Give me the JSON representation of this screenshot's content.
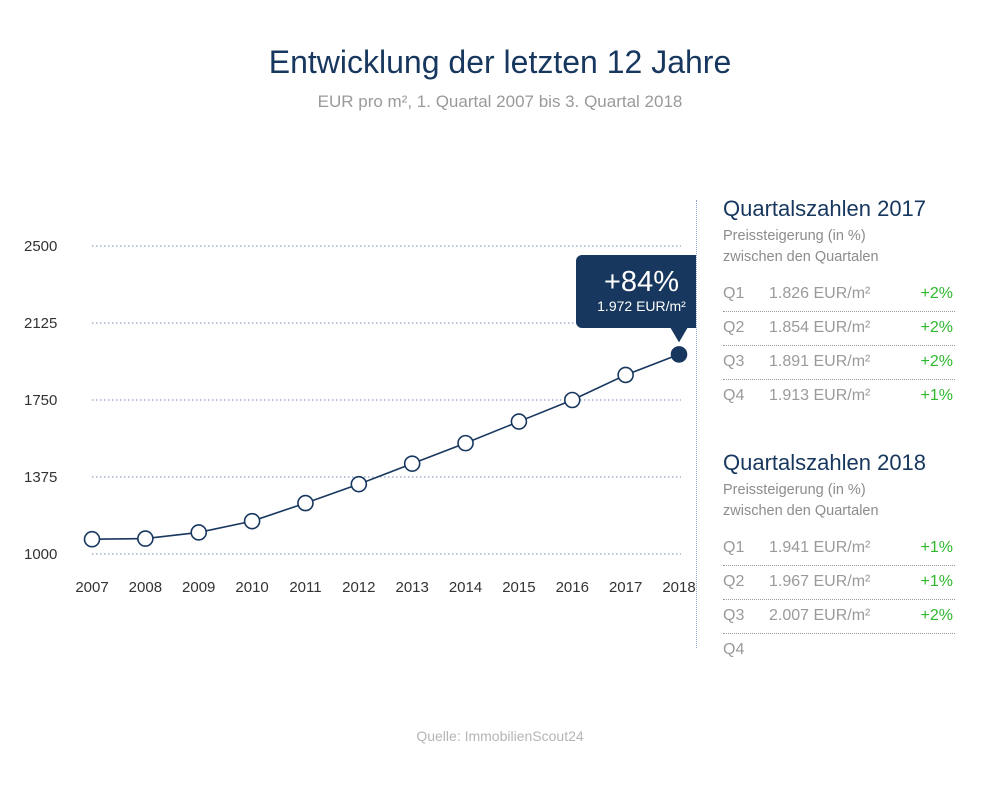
{
  "header": {
    "title": "Entwicklung der letzten 12 Jahre",
    "subtitle": "EUR pro m², 1. Quartal 2007 bis 3. Quartal 2018"
  },
  "colors": {
    "primary": "#17375e",
    "increase": "#2eb82e",
    "muted": "#9a9a9a",
    "gridline": "#8fa3c8"
  },
  "chart_data": {
    "type": "line",
    "title": "Entwicklung der letzten 12 Jahre",
    "subtitle": "EUR pro m², 1. Quartal 2007 bis 3. Quartal 2018",
    "x": [
      "2007",
      "2008",
      "2009",
      "2010",
      "2011",
      "2012",
      "2013",
      "2014",
      "2015",
      "2016",
      "2017",
      "2018"
    ],
    "series": [
      {
        "values": [
          1072,
          1075,
          1105,
          1160,
          1248,
          1340,
          1440,
          1540,
          1645,
          1750,
          1872,
          1972
        ]
      }
    ],
    "ylim": [
      1000,
      2500
    ],
    "y_ticks": [
      "2500",
      "2125",
      "1750",
      "1375",
      "1000"
    ],
    "grid": true,
    "highlight": {
      "category": "2018",
      "value": 1972,
      "label_main": "+84%",
      "label_sub": "1.972 EUR/m²"
    }
  },
  "panels": [
    {
      "title": "Quartalszahlen 2017",
      "desc_line1": "Preissteigerung (in %)",
      "desc_line2": "zwischen den Quartalen",
      "rows": [
        {
          "q": "Q1",
          "value": "1.826 EUR/m²",
          "change": "+2%"
        },
        {
          "q": "Q2",
          "value": "1.854 EUR/m²",
          "change": "+2%"
        },
        {
          "q": "Q3",
          "value": "1.891 EUR/m²",
          "change": "+2%"
        },
        {
          "q": "Q4",
          "value": "1.913 EUR/m²",
          "change": "+1%"
        }
      ]
    },
    {
      "title": "Quartalszahlen 2018",
      "desc_line1": "Preissteigerung (in %)",
      "desc_line2": "zwischen den Quartalen",
      "rows": [
        {
          "q": "Q1",
          "value": "1.941 EUR/m²",
          "change": "+1%"
        },
        {
          "q": "Q2",
          "value": "1.967 EUR/m²",
          "change": "+1%"
        },
        {
          "q": "Q3",
          "value": "2.007 EUR/m²",
          "change": "+2%"
        },
        {
          "q": "Q4",
          "value": "",
          "change": ""
        }
      ]
    }
  ],
  "source": "Quelle: ImmobilienScout24"
}
